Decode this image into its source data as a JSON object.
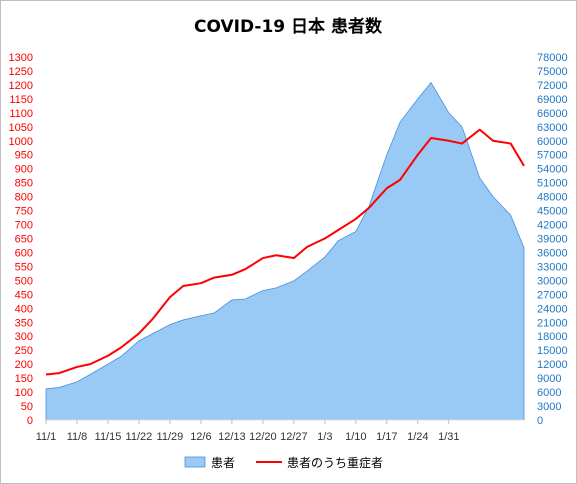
{
  "chart_data": {
    "type": "line",
    "title": "COVID-19 日本 患者数",
    "x_ticks": [
      "11/1",
      "11/8",
      "11/15",
      "11/22",
      "11/29",
      "12/6",
      "12/13",
      "12/20",
      "12/27",
      "1/3",
      "1/10",
      "1/17",
      "1/24",
      "1/31"
    ],
    "y_left": {
      "ticks": [
        0,
        50,
        100,
        150,
        200,
        250,
        300,
        350,
        400,
        450,
        500,
        550,
        600,
        650,
        700,
        750,
        800,
        850,
        900,
        950,
        1000,
        1050,
        1100,
        1150,
        1200,
        1250,
        1300
      ],
      "range": [
        0,
        1300
      ],
      "color": "#ff0000"
    },
    "y_right": {
      "ticks": [
        0,
        3000,
        6000,
        9000,
        12000,
        15000,
        18000,
        21000,
        24000,
        27000,
        30000,
        33000,
        36000,
        39000,
        42000,
        45000,
        48000,
        51000,
        54000,
        57000,
        60000,
        63000,
        66000,
        69000,
        72000,
        75000,
        78000
      ],
      "range": [
        0,
        78000
      ],
      "color": "#1f78c8"
    },
    "series": [
      {
        "name": "患者",
        "type": "area",
        "axis": "right",
        "color": "#99c9f5",
        "points": [
          [
            0,
            6700
          ],
          [
            3,
            7000
          ],
          [
            7,
            8200
          ],
          [
            10,
            9800
          ],
          [
            14,
            12000
          ],
          [
            17,
            13700
          ],
          [
            21,
            17000
          ],
          [
            24,
            18500
          ],
          [
            28,
            20500
          ],
          [
            31,
            21500
          ],
          [
            35,
            22400
          ],
          [
            38,
            23000
          ],
          [
            42,
            25800
          ],
          [
            45,
            26000
          ],
          [
            49,
            27800
          ],
          [
            52,
            28400
          ],
          [
            56,
            29900
          ],
          [
            59,
            32000
          ],
          [
            63,
            35000
          ],
          [
            66,
            38500
          ],
          [
            70,
            40500
          ],
          [
            73,
            46000
          ],
          [
            77,
            57000
          ],
          [
            80,
            64000
          ],
          [
            84,
            69000
          ],
          [
            87,
            72500
          ],
          [
            91,
            66000
          ],
          [
            94,
            63000
          ],
          [
            98,
            52000
          ],
          [
            101,
            48000
          ],
          [
            105,
            44000
          ],
          [
            108,
            37000
          ]
        ]
      },
      {
        "name": "患者のうち重症者",
        "type": "line",
        "axis": "left",
        "color": "#ff0000",
        "points": [
          [
            0,
            163
          ],
          [
            3,
            168
          ],
          [
            7,
            190
          ],
          [
            10,
            200
          ],
          [
            14,
            230
          ],
          [
            17,
            260
          ],
          [
            21,
            310
          ],
          [
            24,
            360
          ],
          [
            28,
            440
          ],
          [
            31,
            480
          ],
          [
            35,
            490
          ],
          [
            38,
            510
          ],
          [
            42,
            520
          ],
          [
            45,
            540
          ],
          [
            49,
            580
          ],
          [
            52,
            590
          ],
          [
            56,
            580
          ],
          [
            59,
            620
          ],
          [
            63,
            650
          ],
          [
            66,
            680
          ],
          [
            70,
            720
          ],
          [
            73,
            760
          ],
          [
            77,
            830
          ],
          [
            80,
            860
          ],
          [
            84,
            950
          ],
          [
            87,
            1010
          ],
          [
            91,
            1000
          ],
          [
            94,
            990
          ],
          [
            98,
            1040
          ],
          [
            101,
            1000
          ],
          [
            105,
            990
          ],
          [
            108,
            910
          ]
        ]
      }
    ],
    "legend_position": "bottom",
    "grid": false
  }
}
